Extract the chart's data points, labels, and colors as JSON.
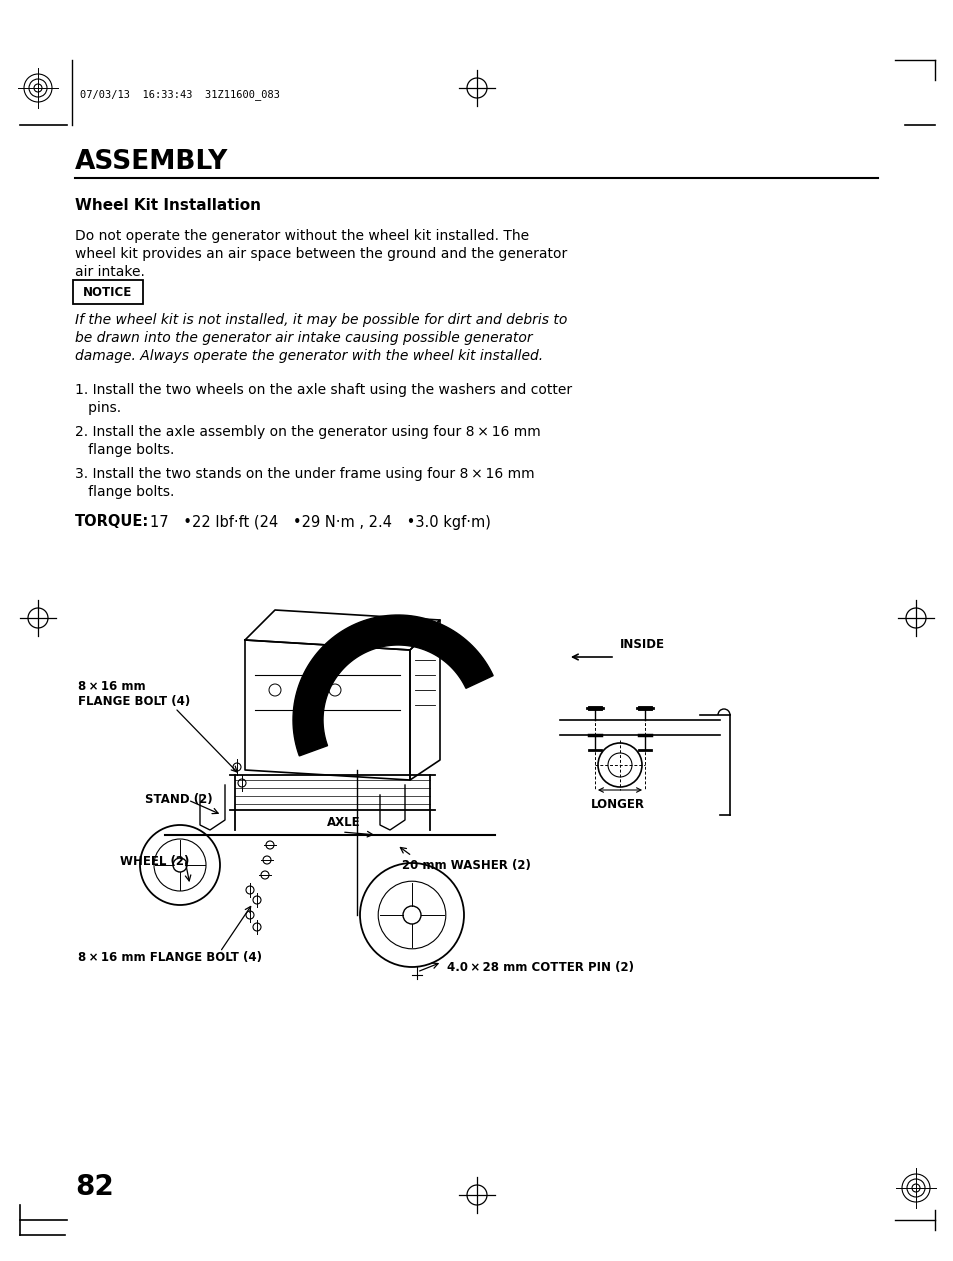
{
  "bg_color": "#ffffff",
  "page_header_text": "07/03/13  16:33:43  31Z11600_083",
  "title": "ASSEMBLY",
  "section_title": "Wheel Kit Installation",
  "body_line1": "Do not operate the generator without the wheel kit installed. The",
  "body_line2": "wheel kit provides an air space between the ground and the generator",
  "body_line3": "air intake.",
  "notice_label": "NOTICE",
  "notice_line1": "If the wheel kit is not installed, it may be possible for dirt and debris to",
  "notice_line2": "be drawn into the generator air intake causing possible generator",
  "notice_line3": "damage. Always operate the generator with the wheel kit installed.",
  "step1_line1": "1. Install the two wheels on the axle shaft using the washers and cotter",
  "step1_line2": "   pins.",
  "step2_line1": "2. Install the axle assembly on the generator using four 8 × 16 mm",
  "step2_line2": "   flange bolts.",
  "step3_line1": "3. Install the two stands on the under frame using four 8 × 16 mm",
  "step3_line2": "   flange bolts.",
  "torque_bold": "TORQUE:",
  "torque_rest": "  17 •22 lbf·ft (24 •29 N·m , 2.4 •3.0 kgf·m)",
  "label_flange_top_l1": "8 × 16 mm",
  "label_flange_top_l2": "FLANGE BOLT (4)",
  "label_stand": "STAND (2)",
  "label_wheel": "WHEEL (2)",
  "label_axle": "AXLE",
  "label_washer": "20 mm WASHER (2)",
  "label_cotter": "4.0 × 28 mm COTTER PIN (2)",
  "label_flange_bot": "8 × 16 mm FLANGE BOLT (4)",
  "label_inside": "INSIDE",
  "label_longer": "LONGER",
  "page_number": "82"
}
